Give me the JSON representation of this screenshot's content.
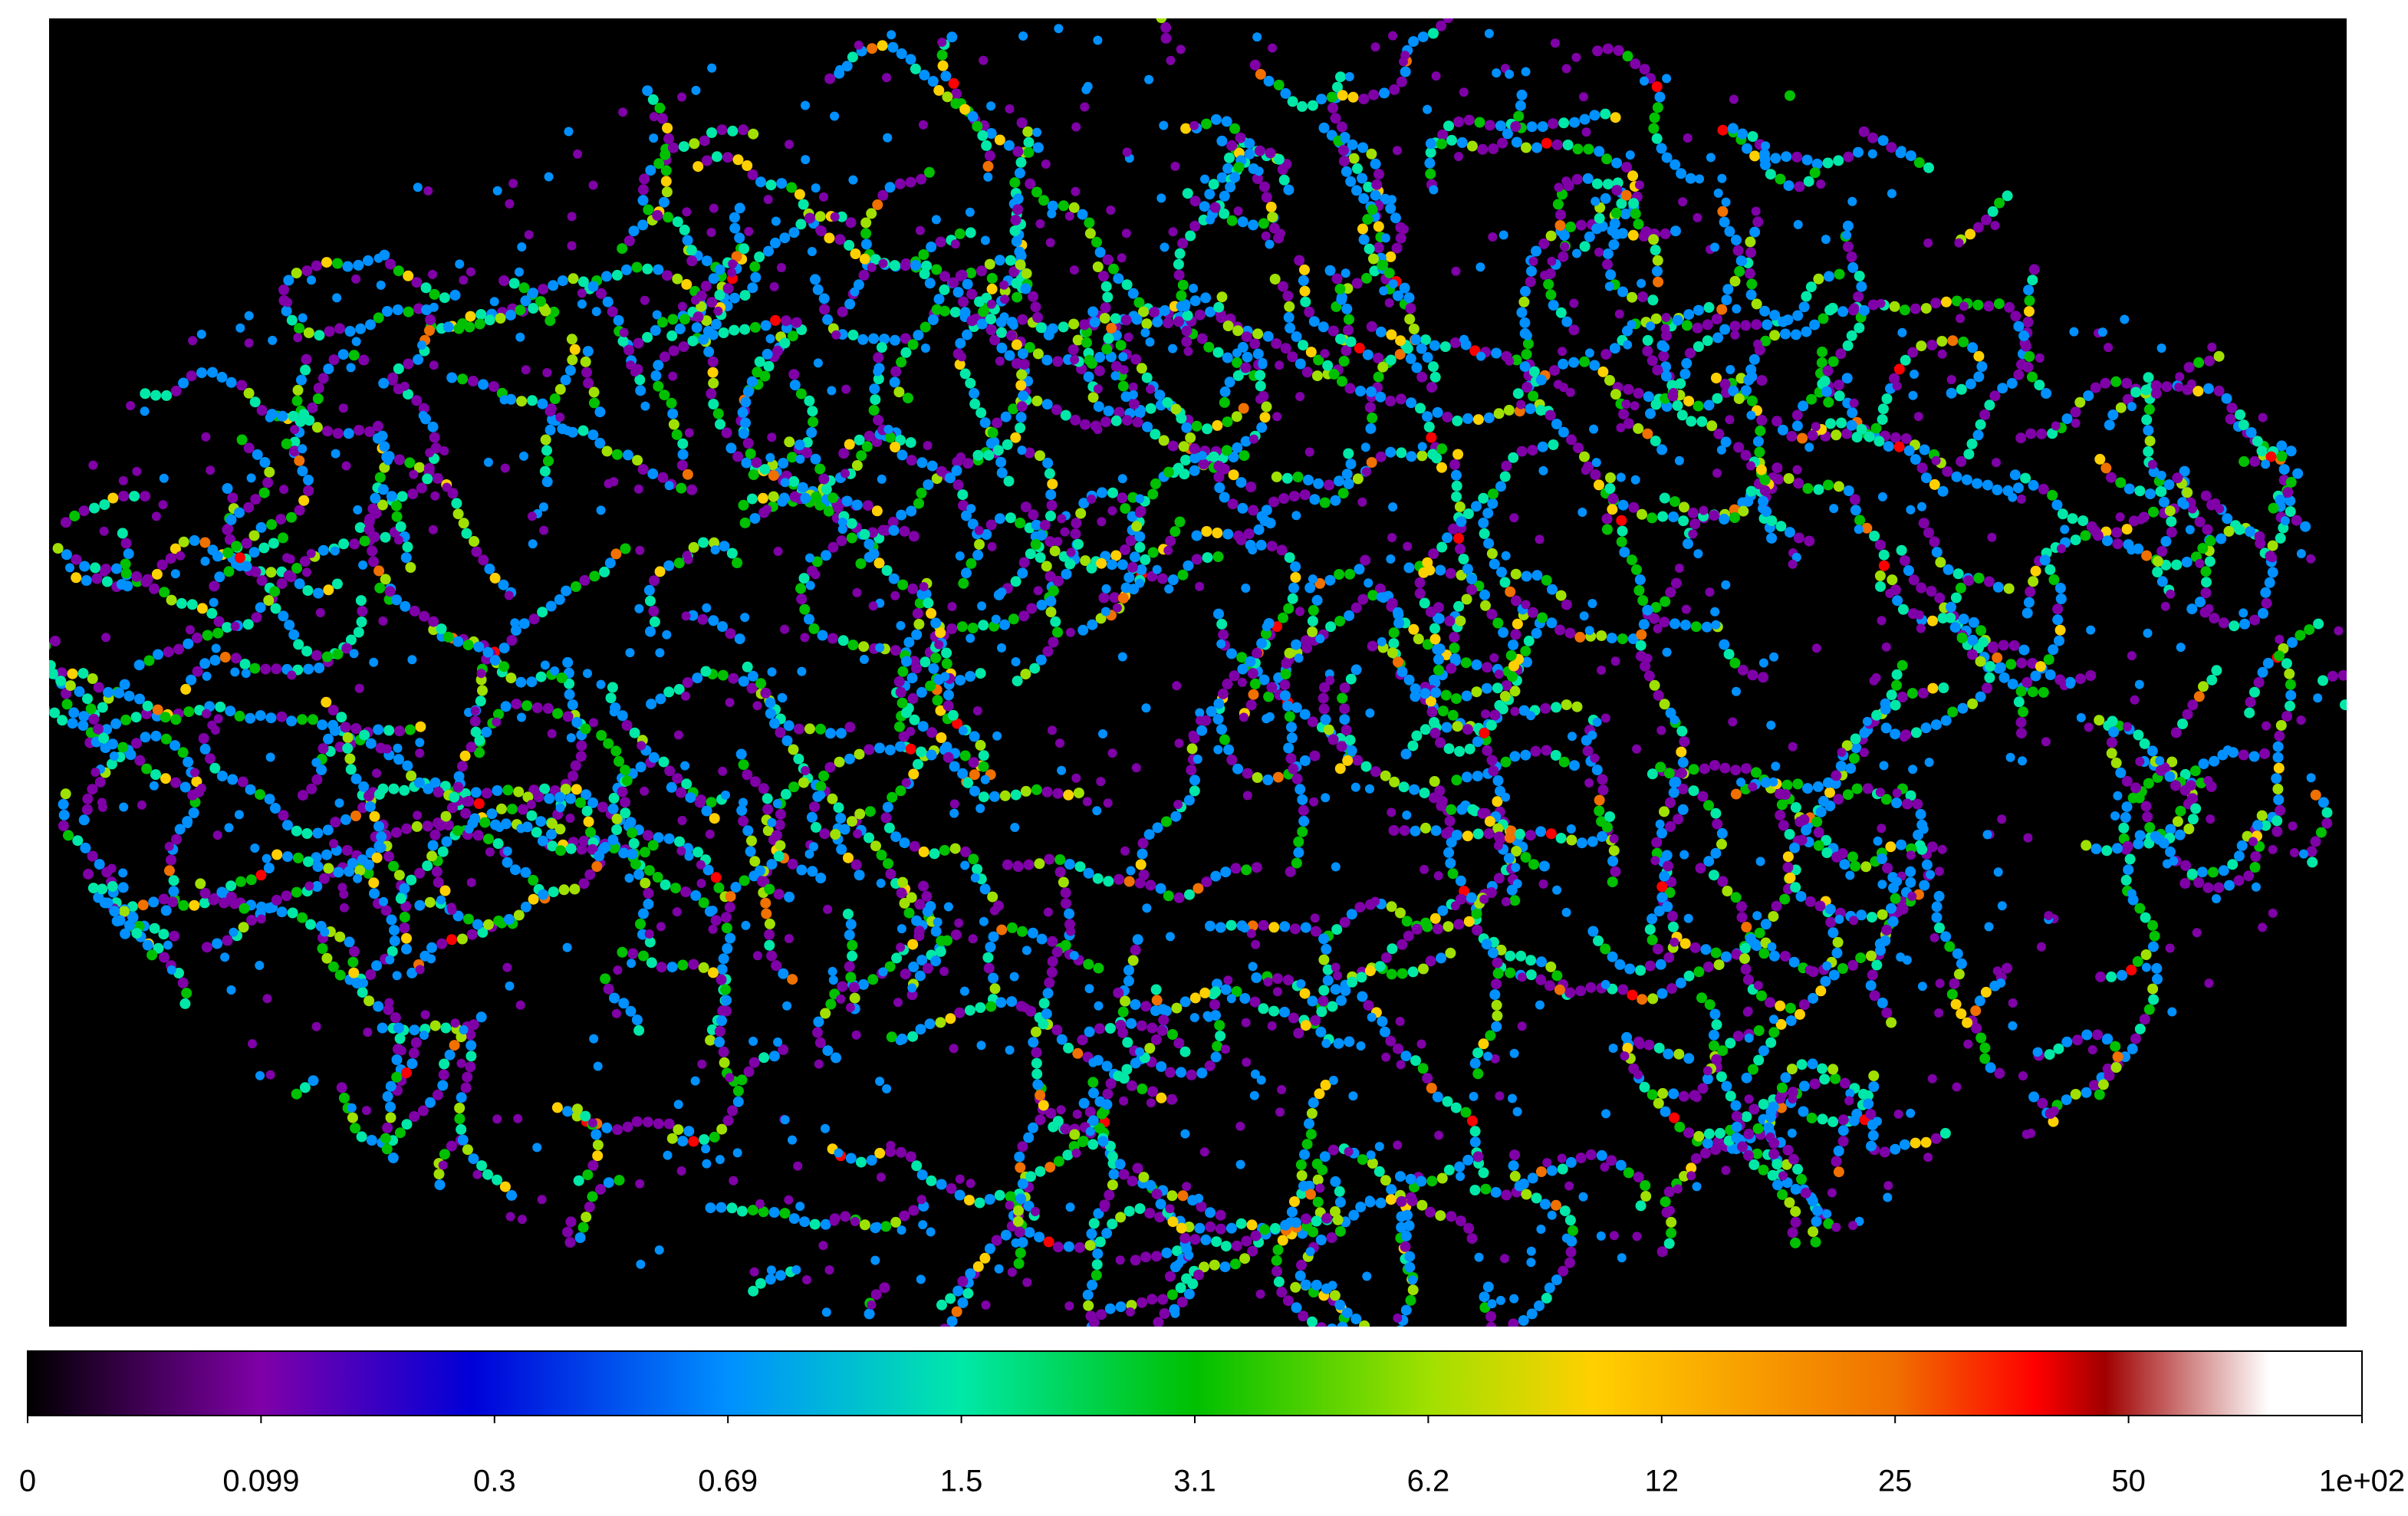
{
  "chart_data": {
    "type": "colormap-image",
    "colorbar": {
      "colormap": [
        "#000000",
        "#8000a8",
        "#0000d8",
        "#0090ff",
        "#00e8a8",
        "#00c000",
        "#a0e000",
        "#ffd000",
        "#f07000",
        "#ff0000",
        "#a00000",
        "#ffffff"
      ],
      "ticks": [
        0,
        0.099,
        0.3,
        0.69,
        1.5,
        3.1,
        6.2,
        12,
        25,
        50,
        {
          "value": 100,
          "label": "1e+02"
        }
      ]
    }
  }
}
